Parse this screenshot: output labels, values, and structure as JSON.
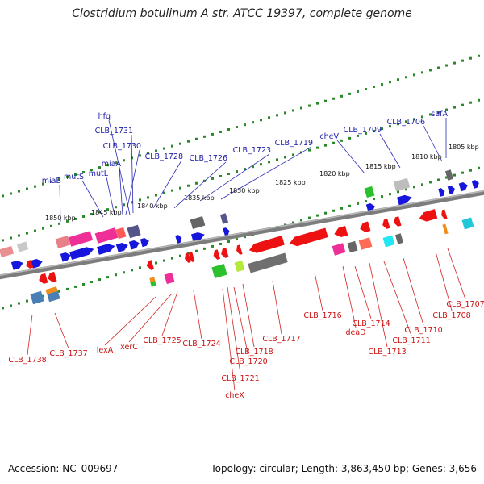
{
  "title": "Clostridium botulinum A str. ATCC 19397, complete genome",
  "footer": {
    "accession": "Accession: NC_009697",
    "summary": "Topology: circular; Length: 3,863,450 bp; Genes: 3,656"
  },
  "colors": {
    "top_labels": "#1a1aa8",
    "bottom_labels": "#cc1111",
    "backbone": "#808080",
    "ticks": "#1e8c1e"
  },
  "kbp_marks": [
    "1805 kbp",
    "1810 kbp",
    "1815 kbp",
    "1820 kbp",
    "1825 kbp",
    "1830 kbp",
    "1835 kbp",
    "1840 kbp",
    "1845 kbp",
    "1850 kbp"
  ],
  "top_labels": [
    "hfq",
    "CLB_1731",
    "CLB_1730",
    "miaA",
    "mutL",
    "mutS",
    "miaB",
    "CLB_1728",
    "CLB_1726",
    "CLB_1723",
    "CLB_1719",
    "cheV",
    "CLB_1709",
    "CLB_1706",
    "safA"
  ],
  "bottom_labels": [
    "CLB_1738",
    "CLB_1737",
    "lexA",
    "xerC",
    "CLB_1725",
    "CLB_1724",
    "CLB_1717",
    "CLB_1718",
    "CLB_1720",
    "CLB_1721",
    "cheX",
    "CLB_1716",
    "deaD",
    "CLB_1714",
    "CLB_1713",
    "CLB_1711",
    "CLB_1710",
    "CLB_1708",
    "CLB_1707"
  ]
}
